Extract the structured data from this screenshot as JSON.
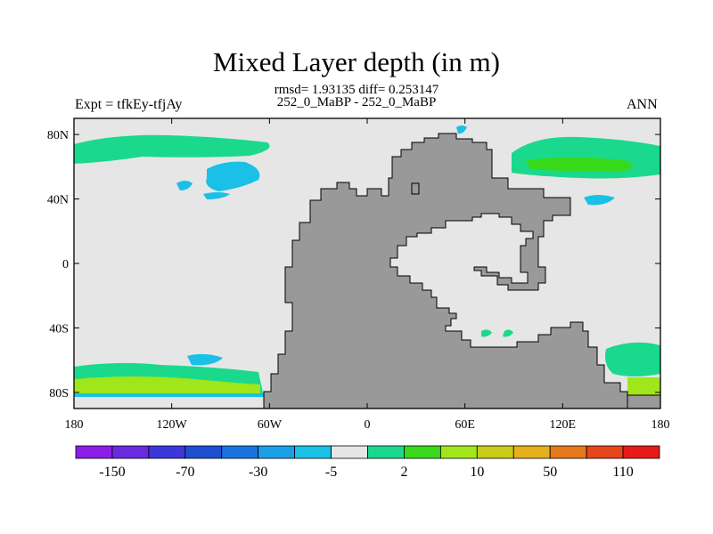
{
  "title": "Mixed Layer depth (in m)",
  "stats_line": "rmsd= 1.93135 diff= 0.253147",
  "cases_line": "252_0_MaBP - 252_0_MaBP",
  "left_label": "Expt = tfkEy-tfjAy",
  "right_label": "ANN",
  "map": {
    "projection": "cylindrical equidistant",
    "lon_range": [
      -180,
      180
    ],
    "lat_range": [
      -90,
      90
    ],
    "ocean_background": "#e6e6e6",
    "land_color": "#999999",
    "lon_ticks": [
      {
        "lon": -180,
        "label": "180"
      },
      {
        "lon": -120,
        "label": "120W"
      },
      {
        "lon": -60,
        "label": "60W"
      },
      {
        "lon": 0,
        "label": "0"
      },
      {
        "lon": 60,
        "label": "60E"
      },
      {
        "lon": 120,
        "label": "120E"
      },
      {
        "lon": 180,
        "label": "180"
      }
    ],
    "lat_ticks": [
      {
        "lat": 80,
        "label": "80N"
      },
      {
        "lat": 40,
        "label": "40N"
      },
      {
        "lat": 0,
        "label": "0"
      },
      {
        "lat": -40,
        "label": "40S"
      },
      {
        "lat": -80,
        "label": "80S"
      }
    ]
  },
  "colorbar": {
    "colors": [
      "#8c1ee6",
      "#6a2ae0",
      "#3b37d9",
      "#1e4fd1",
      "#1a73e0",
      "#1aa0e6",
      "#1ac0e6",
      "#e6e6e6",
      "#1ad98c",
      "#37d91a",
      "#a0e61a",
      "#c8cc1a",
      "#e6b01a",
      "#e6781a",
      "#e6461a",
      "#e61a1a"
    ],
    "labels": [
      {
        "after_box": 1,
        "text": "-150"
      },
      {
        "after_box": 3,
        "text": "-70"
      },
      {
        "after_box": 5,
        "text": "-30"
      },
      {
        "after_box": 7,
        "text": "-5"
      },
      {
        "after_box": 9,
        "text": "2"
      },
      {
        "after_box": 11,
        "text": "10"
      },
      {
        "after_box": 13,
        "text": "50"
      },
      {
        "after_box": 15,
        "text": "110"
      }
    ]
  }
}
